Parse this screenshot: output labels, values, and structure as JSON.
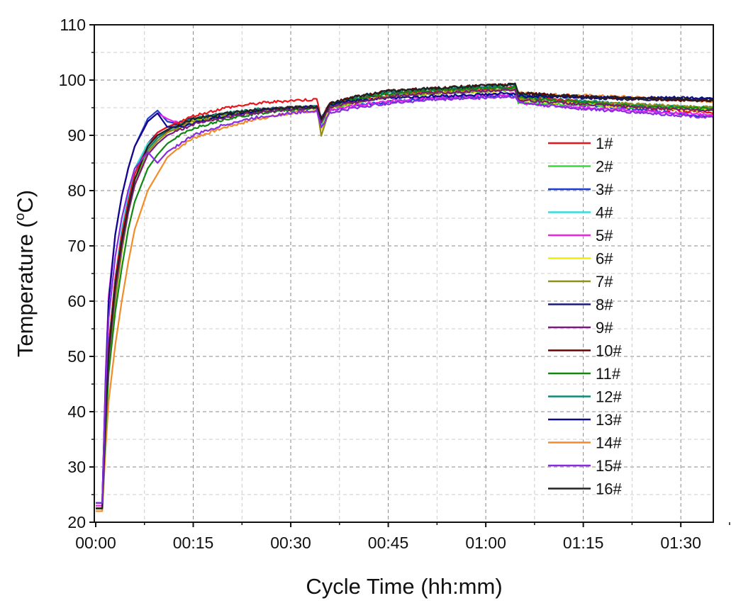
{
  "chart_data": {
    "type": "line",
    "title": "",
    "xlabel": "Cycle Time (hh:mm)",
    "ylabel_main": "Temperature (",
    "ylabel_sup": "o",
    "ylabel_end": "C)",
    "xlim": [
      0,
      95
    ],
    "ylim": [
      20,
      110
    ],
    "x_ticks": [
      {
        "value": 0,
        "label": "00:00"
      },
      {
        "value": 15,
        "label": "00:15"
      },
      {
        "value": 30,
        "label": "00:30"
      },
      {
        "value": 45,
        "label": "00:45"
      },
      {
        "value": 60,
        "label": "01:00"
      },
      {
        "value": 75,
        "label": "01:15"
      },
      {
        "value": 90,
        "label": "01:30"
      }
    ],
    "y_ticks": [
      20,
      30,
      40,
      50,
      60,
      70,
      80,
      90,
      100,
      110
    ],
    "grid": true,
    "legend_position": "right-inside",
    "x_unit": "minutes",
    "x": [
      0,
      1,
      1.5,
      2,
      3,
      4,
      5,
      6,
      8,
      9.5,
      11,
      13,
      15,
      20,
      25,
      30,
      34,
      34.7,
      36,
      40,
      45,
      50,
      55,
      60,
      64.5,
      65,
      66,
      70,
      75,
      80,
      85,
      90,
      95
    ],
    "series": [
      {
        "name": "1#",
        "color": "#e8161b",
        "values": [
          22.5,
          22.5,
          40,
          52,
          64,
          72,
          78,
          83,
          88,
          90.5,
          91.5,
          92.5,
          93.5,
          95,
          95.8,
          96.3,
          96.5,
          93,
          95.5,
          96.5,
          97.2,
          97.8,
          98,
          98.3,
          98.5,
          97,
          96.8,
          96.5,
          96,
          95.5,
          95,
          94.5,
          94
        ]
      },
      {
        "name": "2#",
        "color": "#33dd33",
        "values": [
          22.5,
          22.5,
          38,
          50,
          63,
          71,
          77,
          82,
          87,
          89,
          90.5,
          91.5,
          92.5,
          93.5,
          94.3,
          94.8,
          95,
          92,
          95,
          96,
          97,
          97.5,
          97.8,
          98,
          98.3,
          96,
          95.8,
          95.7,
          95.5,
          95.2,
          95,
          94.8,
          94.5
        ]
      },
      {
        "name": "3#",
        "color": "#1f3fcf",
        "values": [
          23.5,
          23.5,
          45,
          60,
          72,
          79,
          84,
          88,
          93,
          94.5,
          92.5,
          92,
          92.5,
          93.5,
          94.5,
          95,
          95,
          92,
          94.5,
          95.5,
          96,
          96.5,
          96.8,
          97,
          97.2,
          96.5,
          96.3,
          96,
          95.5,
          95,
          94.5,
          94,
          93.3
        ]
      },
      {
        "name": "4#",
        "color": "#33dddd",
        "values": [
          22.5,
          22.5,
          40,
          52,
          64,
          73,
          79,
          84,
          88.5,
          90,
          91,
          91.5,
          92.5,
          93.5,
          94.3,
          94.8,
          95,
          92,
          95,
          96,
          97,
          97.5,
          97.8,
          98,
          98.2,
          96.5,
          96.3,
          96,
          95.8,
          95.5,
          95.2,
          95,
          94.8
        ]
      },
      {
        "name": "5#",
        "color": "#ee22ee",
        "values": [
          23,
          23,
          46,
          61,
          72,
          79,
          84,
          88,
          92.5,
          94,
          93,
          92,
          92.5,
          93.5,
          94.3,
          94.8,
          95,
          92,
          94.5,
          95.5,
          96.2,
          96.7,
          97,
          97.3,
          97.5,
          96,
          95.8,
          95.5,
          95,
          94.7,
          94.3,
          94,
          93.8
        ]
      },
      {
        "name": "6#",
        "color": "#eeee00",
        "values": [
          22.5,
          22.5,
          37,
          48,
          60,
          69,
          76,
          81,
          87,
          89,
          90.5,
          91.5,
          92.5,
          93.5,
          94.3,
          94.8,
          95,
          91,
          95,
          96,
          97,
          97.5,
          97.8,
          98,
          98.2,
          96.5,
          96.3,
          96,
          95.7,
          95.3,
          95,
          94.7,
          94.5
        ]
      },
      {
        "name": "7#",
        "color": "#8f8f1a",
        "values": [
          22.5,
          22.5,
          37,
          48,
          60,
          69,
          76,
          81,
          87,
          89,
          90.5,
          91.5,
          92.5,
          93.5,
          94.3,
          94.8,
          95,
          90,
          95,
          96,
          97,
          97.5,
          97.8,
          98,
          98.3,
          96.8,
          96.5,
          96.2,
          96,
          95.8,
          95.5,
          95.3,
          95
        ]
      },
      {
        "name": "8#",
        "color": "#1a1a7a",
        "values": [
          22.5,
          22.5,
          40,
          52,
          64,
          72,
          78,
          83,
          88.5,
          90.5,
          91.5,
          92.3,
          93,
          94,
          94.6,
          95,
          95.2,
          93,
          95.5,
          96.5,
          97.5,
          98,
          98.3,
          98.6,
          98.8,
          97.5,
          97.3,
          97,
          96.8,
          96.6,
          96.5,
          96.5,
          96.5
        ]
      },
      {
        "name": "9#",
        "color": "#7a1a7a",
        "values": [
          22.5,
          22.5,
          38,
          50,
          62,
          70,
          76,
          81,
          86.5,
          88.5,
          90,
          91,
          92,
          93.3,
          94.2,
          94.7,
          95,
          92.5,
          95,
          96,
          97,
          97.5,
          97.8,
          98,
          98.3,
          96.5,
          96.3,
          96,
          95.6,
          95.3,
          95,
          94.7,
          94.5
        ]
      },
      {
        "name": "10#",
        "color": "#6b0000",
        "values": [
          22.5,
          22.5,
          39,
          51,
          63,
          71,
          77,
          82,
          87.5,
          89.5,
          90.8,
          91.8,
          92.8,
          94,
          94.6,
          95,
          95.2,
          93,
          95.8,
          97,
          98,
          98.4,
          98.7,
          99,
          99.2,
          97.8,
          97.6,
          97.3,
          97,
          96.8,
          96.6,
          96.4,
          96.2
        ]
      },
      {
        "name": "11#",
        "color": "#118811",
        "values": [
          22.5,
          22.5,
          36,
          47,
          58,
          66,
          73,
          78,
          84,
          86.5,
          88.5,
          90,
          91.3,
          93,
          94,
          94.6,
          95,
          92.5,
          95.3,
          96.5,
          97.5,
          98,
          98.3,
          98.5,
          98.7,
          97,
          96.8,
          96.4,
          96,
          95.6,
          95.2,
          95,
          94.8
        ]
      },
      {
        "name": "12#",
        "color": "#118877",
        "values": [
          22.5,
          22.5,
          39,
          51,
          63,
          71,
          77,
          82,
          87.5,
          89.5,
          91,
          92,
          93,
          94,
          94.7,
          95,
          95.2,
          93,
          95.5,
          96.8,
          97.8,
          98.2,
          98.5,
          98.8,
          99,
          97.3,
          97,
          96.6,
          96.2,
          95.8,
          95.5,
          95.2,
          95
        ]
      },
      {
        "name": "13#",
        "color": "#0b0b8b",
        "values": [
          23.5,
          23.5,
          45,
          60,
          72,
          79,
          84,
          88,
          92.5,
          94,
          91.5,
          91.5,
          92.2,
          93.5,
          94.5,
          95,
          95.3,
          93,
          95.5,
          96.3,
          96.8,
          97,
          97.2,
          97.4,
          97.6,
          97.2,
          97.1,
          97,
          96.9,
          96.9,
          96.8,
          96.8,
          96.7
        ]
      },
      {
        "name": "14#",
        "color": "#f28c28",
        "values": [
          22,
          22,
          33,
          42,
          52,
          60,
          67,
          73,
          80,
          83,
          86,
          88,
          89.5,
          91.5,
          93,
          94,
          94.5,
          92,
          95,
          96,
          97,
          97.5,
          97.8,
          98,
          98.3,
          97.8,
          97.6,
          97.4,
          97.2,
          97,
          96.8,
          96.5,
          96.2
        ]
      },
      {
        "name": "15#",
        "color": "#8a2be2",
        "values": [
          23.5,
          23.5,
          44,
          57,
          68,
          75,
          80,
          84,
          87,
          85,
          87,
          88.5,
          90,
          92,
          93.3,
          94,
          94.5,
          91.5,
          94,
          95,
          95.8,
          96.3,
          96.6,
          96.8,
          97,
          96,
          95.8,
          95.3,
          94.8,
          94.4,
          94,
          93.6,
          93.2
        ]
      },
      {
        "name": "16#",
        "color": "#222222",
        "values": [
          22.5,
          22.5,
          39,
          51,
          63,
          71,
          77,
          82,
          88,
          90,
          91,
          92,
          93,
          94,
          94.6,
          95,
          95.2,
          93,
          95.8,
          97,
          98,
          98.4,
          98.7,
          99,
          99.2,
          97.8,
          97.6,
          97.3,
          97,
          96.8,
          96.6,
          96.5,
          96.3
        ]
      }
    ]
  }
}
